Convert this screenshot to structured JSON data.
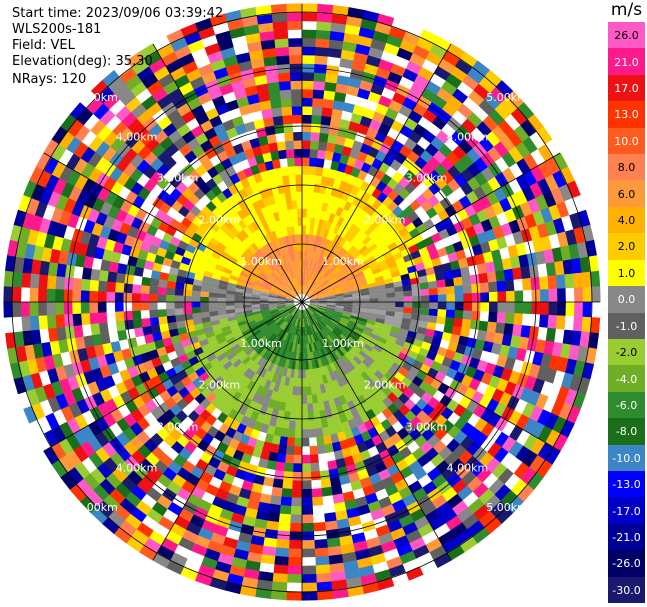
{
  "header": {
    "start_time": "Start time: 2023/09/06 03:39:42",
    "instrument": "WLS200s-181",
    "field": "Field: VEL",
    "elevation": "Elevation(deg): 35.30",
    "nrays": "NRays: 120"
  },
  "colorbar": {
    "unit": "m/s",
    "labels": [
      "26.0",
      "21.0",
      "17.0",
      "13.0",
      "10.0",
      "8.0",
      "6.0",
      "4.0",
      "2.0",
      "1.0",
      "0.0",
      "-1.0",
      "-2.0",
      "-4.0",
      "-6.0",
      "-8.0",
      "-10.0",
      "-13.0",
      "-17.0",
      "-21.0",
      "-26.0",
      "-30.0"
    ],
    "colors": [
      "#ff59c8",
      "#ff1a8c",
      "#ee1111",
      "#ff3300",
      "#ff5a1f",
      "#ff8050",
      "#ff9a3a",
      "#ffb000",
      "#ffcc00",
      "#ffff00",
      "#888888",
      "#606060",
      "#9acd32",
      "#6fae27",
      "#2e8b2e",
      "#1a6e1a",
      "#3d86c6",
      "#0000ff",
      "#0000c8",
      "#000099",
      "#000066",
      "#191970"
    ]
  },
  "range_rings": {
    "labels": [
      "1.00km",
      "2.00km",
      "3.00km",
      "4.00km",
      "5.00km"
    ]
  },
  "plot": {
    "spokes": 12,
    "rings": 5
  }
}
